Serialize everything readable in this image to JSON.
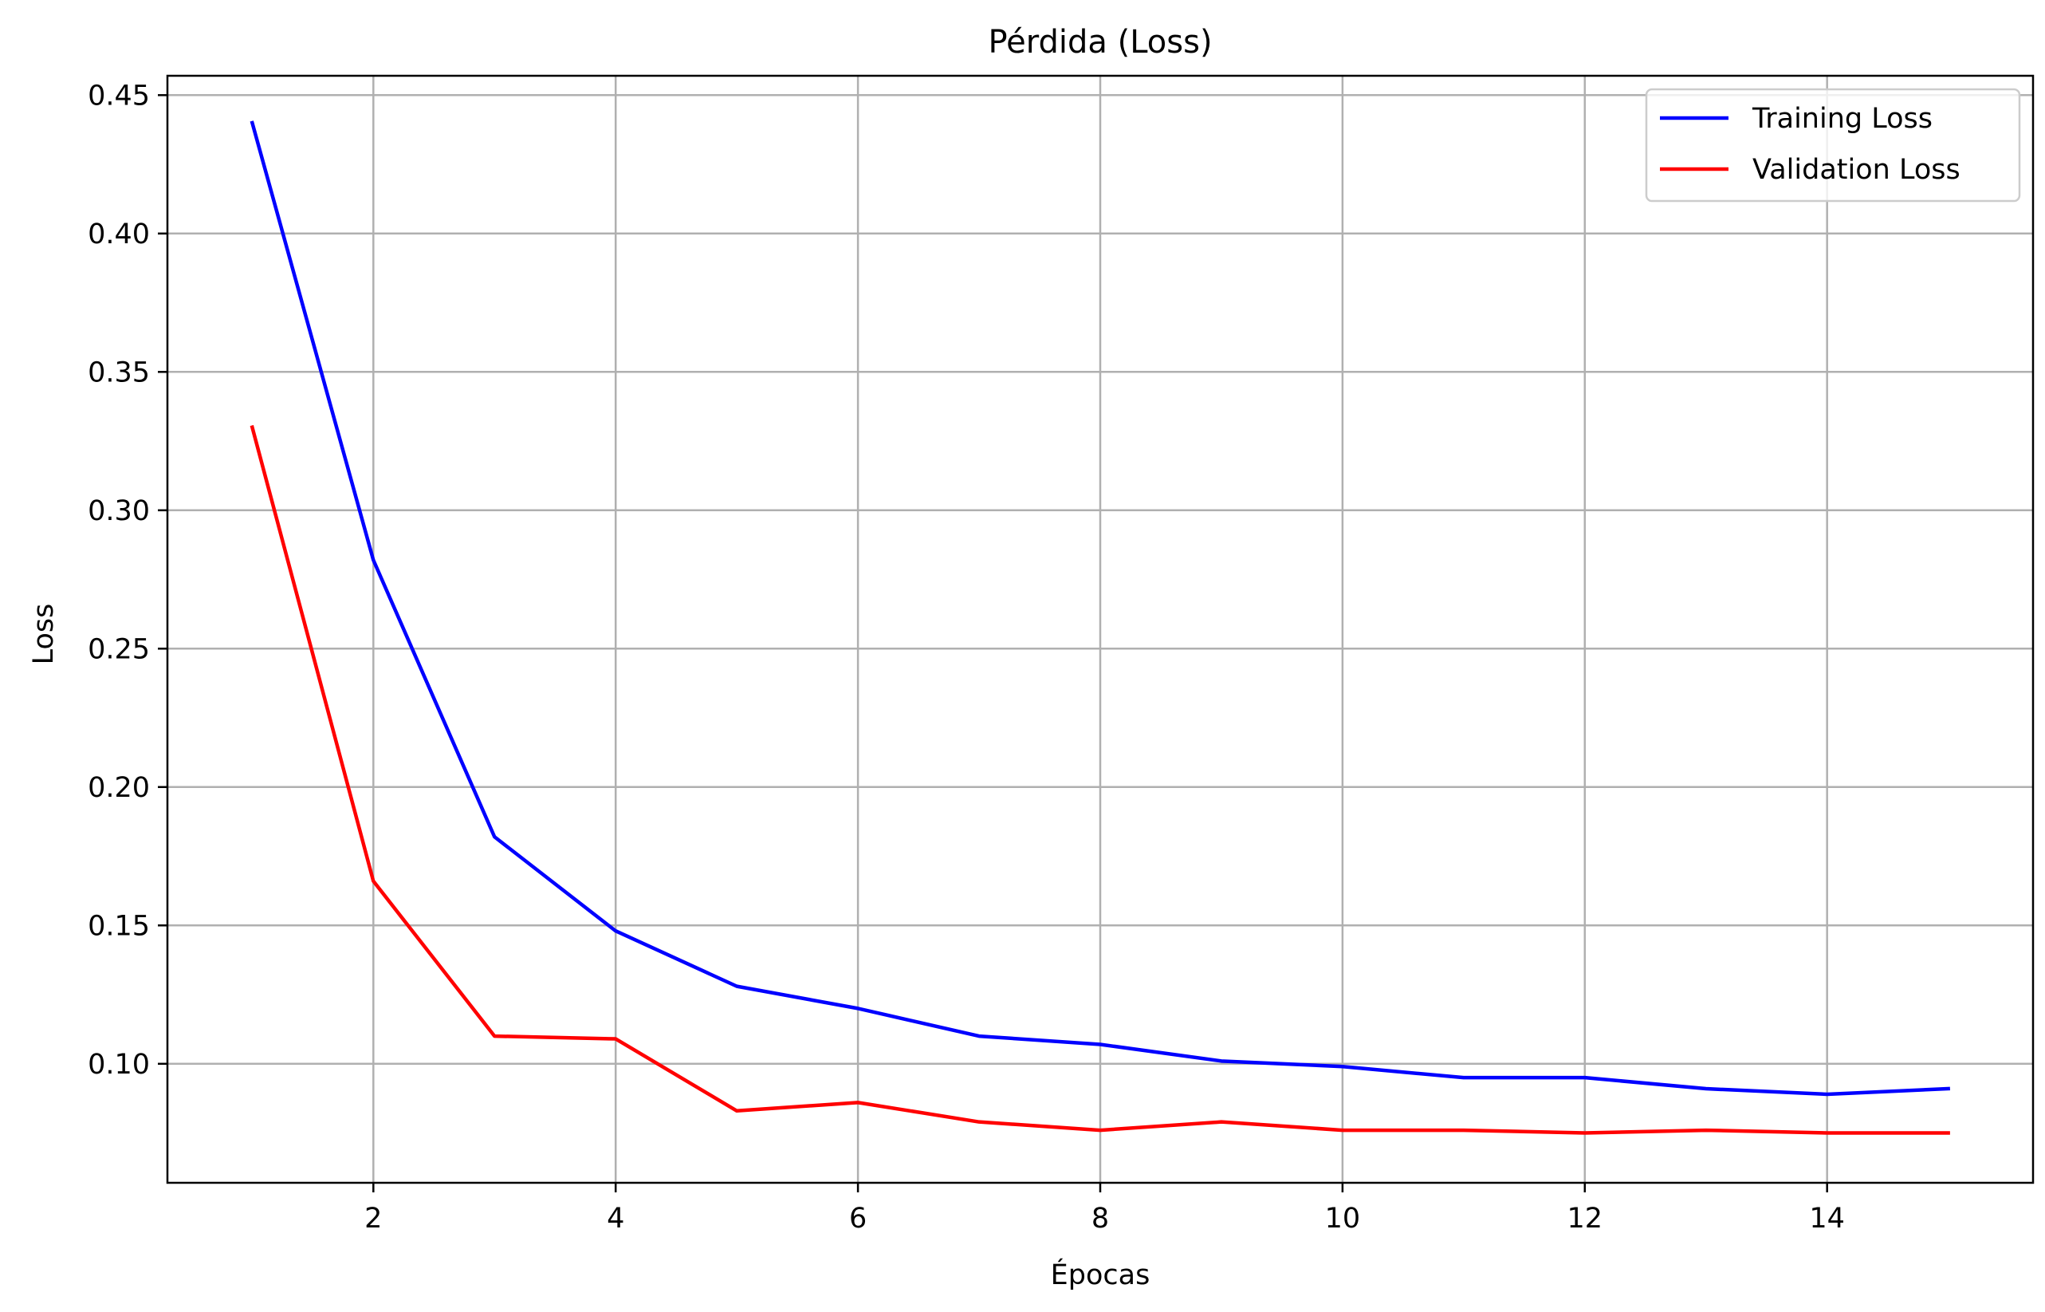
{
  "chart_data": {
    "type": "line",
    "title": "Pérdida (Loss)",
    "xlabel": "Épocas",
    "ylabel": "Loss",
    "x": [
      1,
      2,
      3,
      4,
      5,
      6,
      7,
      8,
      9,
      10,
      11,
      12,
      13,
      14,
      15
    ],
    "xticks": [
      2,
      4,
      6,
      8,
      10,
      12,
      14
    ],
    "xtick_labels": [
      "2",
      "4",
      "6",
      "8",
      "10",
      "12",
      "14"
    ],
    "yticks": [
      0.1,
      0.15,
      0.2,
      0.25,
      0.3,
      0.35,
      0.4,
      0.45
    ],
    "ytick_labels": [
      "0.10",
      "0.15",
      "0.20",
      "0.25",
      "0.30",
      "0.35",
      "0.40",
      "0.45"
    ],
    "xlim": [
      0.3,
      15.7
    ],
    "ylim": [
      0.057,
      0.457
    ],
    "grid": true,
    "legend_position": "upper right",
    "series": [
      {
        "name": "Training Loss",
        "color": "#0000ff",
        "values": [
          0.44,
          0.282,
          0.182,
          0.148,
          0.128,
          0.12,
          0.11,
          0.107,
          0.101,
          0.099,
          0.095,
          0.095,
          0.091,
          0.089,
          0.091
        ]
      },
      {
        "name": "Validation Loss",
        "color": "#ff0000",
        "values": [
          0.33,
          0.166,
          0.11,
          0.109,
          0.083,
          0.086,
          0.079,
          0.076,
          0.079,
          0.076,
          0.076,
          0.075,
          0.076,
          0.075,
          0.075
        ]
      }
    ]
  }
}
